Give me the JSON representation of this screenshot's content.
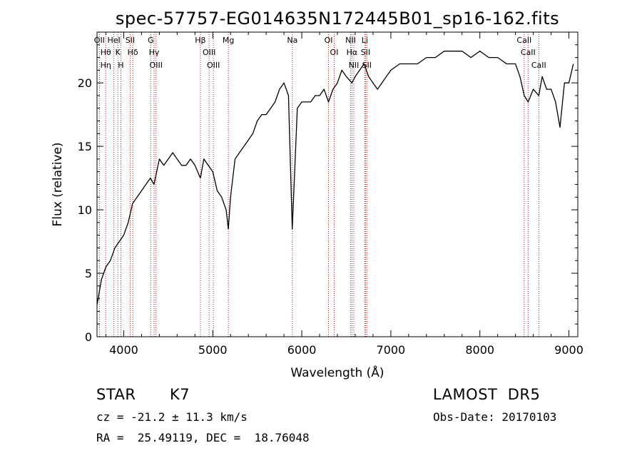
{
  "chart_data": {
    "type": "line",
    "title": "spec-57757-EG014635N172445B01_sp16-162.fits",
    "xlabel": "Wavelength (Å)",
    "ylabel": "Flux (relative)",
    "xlim": [
      3700,
      9100
    ],
    "ylim": [
      0,
      24
    ],
    "xticks": [
      4000,
      5000,
      6000,
      7000,
      8000,
      9000
    ],
    "yticks": [
      0,
      5,
      10,
      15,
      20
    ],
    "grid": false,
    "series": [
      {
        "x": [
          3700,
          3750,
          3800,
          3850,
          3900,
          3950,
          4000,
          4050,
          4100,
          4150,
          4200,
          4250,
          4300,
          4340,
          4400,
          4450,
          4500,
          4550,
          4600,
          4650,
          4700,
          4750,
          4800,
          4861,
          4900,
          4950,
          5000,
          5050,
          5100,
          5150,
          5175,
          5200,
          5250,
          5300,
          5350,
          5400,
          5450,
          5500,
          5550,
          5600,
          5650,
          5700,
          5750,
          5800,
          5850,
          5893,
          5950,
          6000,
          6050,
          6100,
          6150,
          6200,
          6250,
          6300,
          6350,
          6400,
          6450,
          6500,
          6563,
          6600,
          6650,
          6700,
          6750,
          6800,
          6850,
          6900,
          6950,
          7000,
          7100,
          7200,
          7300,
          7400,
          7500,
          7600,
          7700,
          7800,
          7900,
          8000,
          8100,
          8200,
          8300,
          8400,
          8450,
          8498,
          8542,
          8600,
          8662,
          8700,
          8750,
          8800,
          8850,
          8900,
          8950,
          9000,
          9050
        ],
        "y": [
          2.5,
          4.5,
          5.5,
          6,
          7,
          7.5,
          8,
          9,
          10.5,
          11,
          11.5,
          12,
          12.5,
          12,
          14,
          13.5,
          14,
          14.5,
          14,
          13.5,
          13.5,
          14,
          13.5,
          12.5,
          14,
          13.5,
          13,
          11.5,
          11,
          10,
          8.5,
          11,
          14,
          14.5,
          15,
          15.5,
          16,
          17,
          17.5,
          17.5,
          18,
          18.5,
          19.5,
          20,
          19,
          8.5,
          18,
          18.5,
          18.5,
          18.5,
          19,
          19,
          19.5,
          18.5,
          19.5,
          20,
          21,
          20.5,
          20,
          20.5,
          21,
          21.5,
          20.5,
          20,
          19.5,
          20,
          20.5,
          21,
          21.5,
          21.5,
          21.5,
          22,
          22,
          22.5,
          22.5,
          22.5,
          22,
          22.5,
          22,
          22,
          21.5,
          21.5,
          20.5,
          19,
          18.5,
          19.5,
          19,
          20.5,
          19.5,
          19.5,
          18.5,
          16.5,
          20,
          20,
          21.5
        ]
      }
    ],
    "lines": [
      {
        "x": 3727,
        "labels": [
          "OII"
        ]
      },
      {
        "x": 3798,
        "labels": [
          "Hθ",
          "Hη"
        ]
      },
      {
        "x": 3889,
        "labels": [
          "HeI"
        ]
      },
      {
        "x": 3934,
        "labels": [
          "K"
        ]
      },
      {
        "x": 3968,
        "labels": [
          "H"
        ]
      },
      {
        "x": 4072,
        "labels": [
          "SII"
        ]
      },
      {
        "x": 4102,
        "labels": [
          "Hδ"
        ]
      },
      {
        "x": 4304,
        "labels": [
          "G"
        ]
      },
      {
        "x": 4341,
        "labels": [
          "Hγ"
        ]
      },
      {
        "x": 4363,
        "labels": [
          "OIII"
        ]
      },
      {
        "x": 4861,
        "labels": [
          "Hβ"
        ]
      },
      {
        "x": 4959,
        "labels": [
          "OIII"
        ]
      },
      {
        "x": 5007,
        "labels": [
          "OIII"
        ]
      },
      {
        "x": 5175,
        "labels": [
          "Mg"
        ]
      },
      {
        "x": 5894,
        "labels": [
          "Na"
        ]
      },
      {
        "x": 6300,
        "labels": [
          "OI"
        ]
      },
      {
        "x": 6364,
        "labels": [
          "OI"
        ]
      },
      {
        "x": 6548,
        "labels": [
          "NII"
        ]
      },
      {
        "x": 6563,
        "labels": [
          "Hα"
        ]
      },
      {
        "x": 6584,
        "labels": [
          "NII"
        ]
      },
      {
        "x": 6707,
        "labels": [
          "Li"
        ]
      },
      {
        "x": 6716,
        "labels": [
          "SII"
        ]
      },
      {
        "x": 6731,
        "labels": [
          "SII"
        ]
      },
      {
        "x": 8498,
        "labels": [
          "CaII"
        ]
      },
      {
        "x": 8542,
        "labels": [
          "CaII"
        ]
      },
      {
        "x": 8662,
        "labels": [
          "CaII"
        ]
      }
    ]
  },
  "info": {
    "class": "STAR",
    "subclass": "K7",
    "survey": "LAMOST  DR5",
    "cz": "cz = -21.2 ± 11.3 km/s",
    "obs_date": "Obs-Date: 20170103",
    "radec": "RA =  25.49119, DEC =  18.76048"
  },
  "colors": {
    "spectrum": "#000000",
    "line_marker": "#b22222",
    "axes": "#000000"
  }
}
